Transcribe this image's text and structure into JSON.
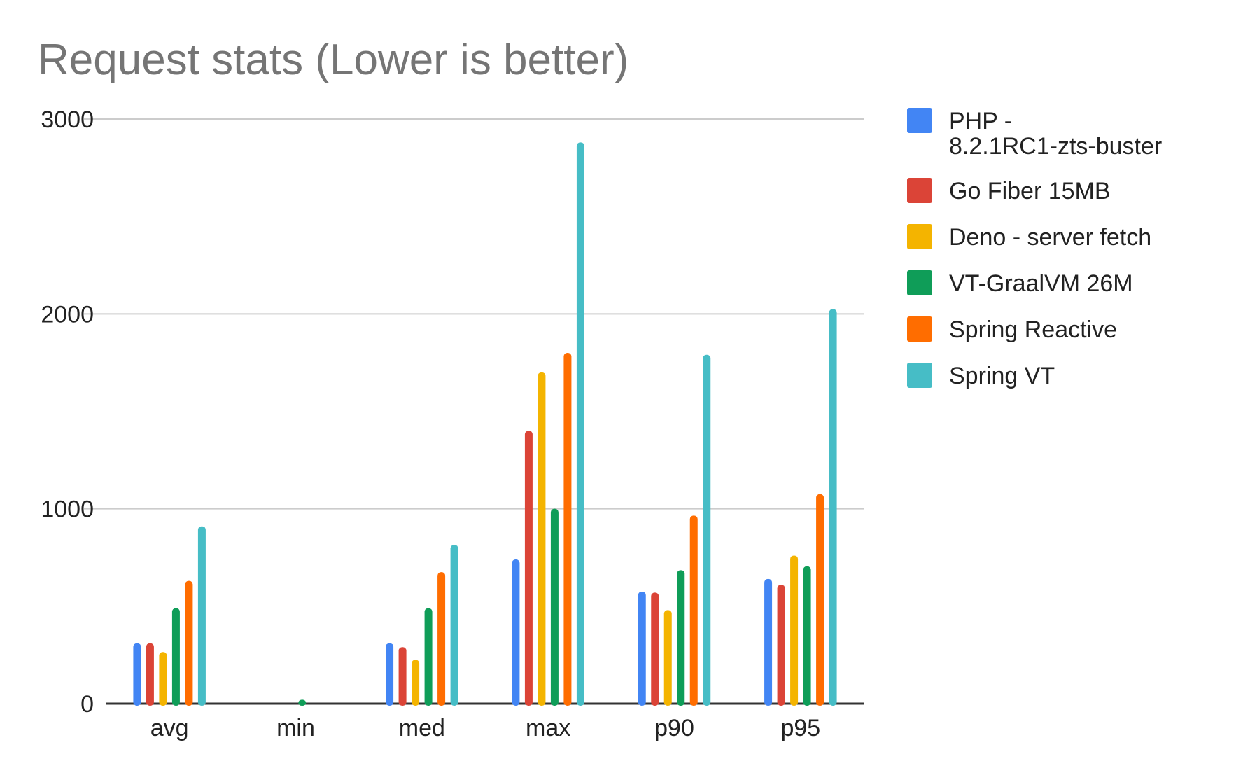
{
  "chart_data": {
    "type": "bar",
    "title": "Request stats (Lower is better)",
    "xlabel": "",
    "ylabel": "",
    "categories": [
      "avg",
      "min",
      "med",
      "max",
      "p90",
      "p95"
    ],
    "ylim": [
      0,
      3000
    ],
    "yticks": [
      "0",
      "1000",
      "2000",
      "3000"
    ],
    "ytick_values": [
      0,
      1000,
      2000,
      3000
    ],
    "grid": true,
    "legend_position": "right",
    "series": [
      {
        "name": "PHP - 8.2.1RC1-zts-buster",
        "legend_lines": [
          "PHP -",
          "8.2.1RC1-zts-buster"
        ],
        "color": "#4285F4",
        "values": [
          310,
          0,
          310,
          740,
          575,
          640
        ]
      },
      {
        "name": "Go Fiber 15MB",
        "legend_lines": [
          "Go Fiber 15MB"
        ],
        "color": "#DB4437",
        "values": [
          310,
          0,
          290,
          1400,
          570,
          610
        ]
      },
      {
        "name": "Deno - server fetch",
        "legend_lines": [
          "Deno - server fetch"
        ],
        "color": "#F4B400",
        "values": [
          265,
          0,
          225,
          1700,
          480,
          760
        ]
      },
      {
        "name": "VT-GraalVM 26M",
        "legend_lines": [
          "VT-GraalVM 26M"
        ],
        "color": "#0F9D58",
        "values": [
          490,
          20,
          490,
          1000,
          685,
          705
        ]
      },
      {
        "name": "Spring Reactive",
        "legend_lines": [
          "Spring Reactive"
        ],
        "color": "#FF6D00",
        "values": [
          630,
          0,
          675,
          1800,
          965,
          1075
        ]
      },
      {
        "name": "Spring VT",
        "legend_lines": [
          "Spring VT"
        ],
        "color": "#46BDC6",
        "values": [
          910,
          0,
          815,
          2880,
          1790,
          2025
        ]
      }
    ]
  }
}
